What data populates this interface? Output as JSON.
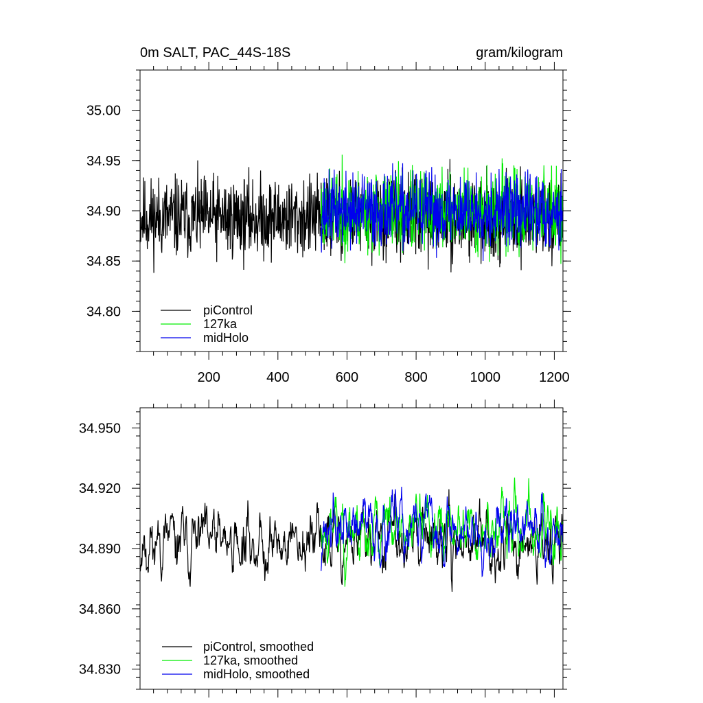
{
  "chart_data": [
    {
      "type": "line",
      "title_left": "0m SALT, PAC_44S-18S",
      "title_right": "gram/kilogram",
      "xlabel": "",
      "ylabel": "",
      "xlim": [
        1,
        1225
      ],
      "ylim": [
        34.76,
        35.04
      ],
      "xticks": [
        200,
        400,
        600,
        800,
        1000,
        1200
      ],
      "xtick_labels": [
        "200",
        "400",
        "600",
        "800",
        "1000",
        "1200"
      ],
      "yticks": [
        34.8,
        34.85,
        34.9,
        34.95,
        35.0
      ],
      "ytick_labels": [
        "34.80",
        "34.85",
        "34.90",
        "34.95",
        "35.00"
      ],
      "grid": false,
      "legend_position": "bottom-left",
      "series": [
        {
          "name": "piControl",
          "color": "#000000",
          "x_start": 1,
          "x_end": 1225,
          "mean": 34.893,
          "amplitude": 0.06,
          "seed": 11
        },
        {
          "name": "127ka",
          "color": "#00ee00",
          "x_start": 525,
          "x_end": 1225,
          "mean": 34.9,
          "amplitude": 0.06,
          "seed": 23
        },
        {
          "name": "midHolo",
          "color": "#0000ee",
          "x_start": 525,
          "x_end": 1225,
          "mean": 34.9,
          "amplitude": 0.055,
          "seed": 37
        }
      ]
    },
    {
      "type": "line",
      "xlim": [
        1,
        1225
      ],
      "ylim": [
        34.82,
        34.96
      ],
      "xticks": [
        200,
        400,
        600,
        800,
        1000,
        1200
      ],
      "xtick_labels": [],
      "yticks": [
        34.83,
        34.86,
        34.89,
        34.92,
        34.95
      ],
      "ytick_labels": [
        "34.830",
        "34.860",
        "34.890",
        "34.920",
        "34.950"
      ],
      "grid": false,
      "legend_position": "bottom-left",
      "series": [
        {
          "name": "piControl, smoothed",
          "color": "#000000",
          "x_start": 1,
          "x_end": 1225,
          "mean": 34.893,
          "amplitude": 0.03,
          "seed": 11
        },
        {
          "name": "127ka, smoothed",
          "color": "#00ee00",
          "x_start": 525,
          "x_end": 1225,
          "mean": 34.9,
          "amplitude": 0.03,
          "seed": 23
        },
        {
          "name": "midHolo, smoothed",
          "color": "#0000ee",
          "x_start": 525,
          "x_end": 1225,
          "mean": 34.9,
          "amplitude": 0.028,
          "seed": 37
        }
      ]
    }
  ]
}
